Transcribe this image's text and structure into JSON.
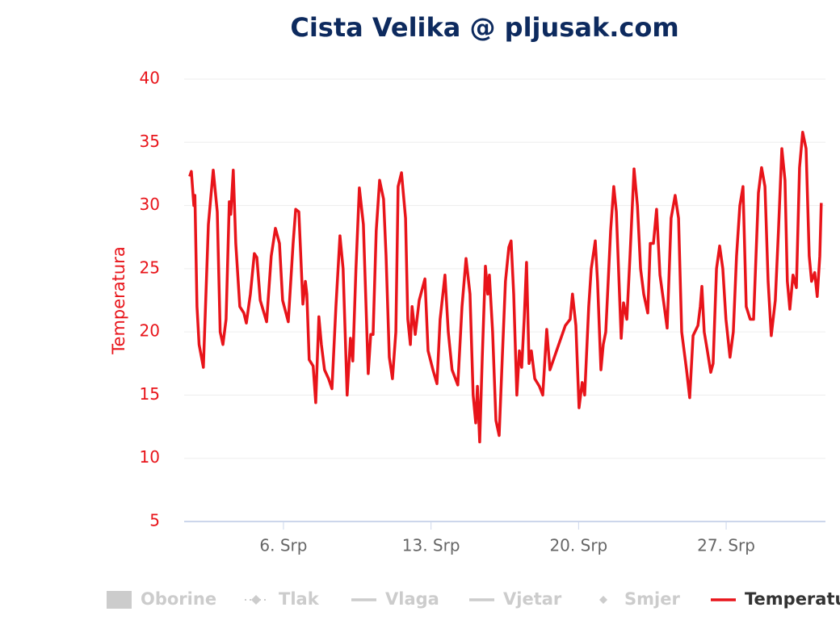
{
  "chart_data": {
    "type": "line",
    "title": "Cista Velika @ pljusak.com",
    "y_label": "Temperatura",
    "x": [
      1.55,
      1.63,
      1.75,
      1.8,
      1.9,
      2.0,
      2.2,
      2.44,
      2.67,
      2.86,
      3.0,
      3.13,
      3.28,
      3.43,
      3.5,
      3.62,
      3.74,
      3.93,
      4.12,
      4.24,
      4.43,
      4.62,
      4.74,
      4.9,
      5.2,
      5.42,
      5.62,
      5.81,
      5.96,
      6.23,
      6.46,
      6.58,
      6.73,
      6.92,
      7.04,
      7.11,
      7.22,
      7.41,
      7.53,
      7.68,
      7.8,
      7.95,
      8.14,
      8.3,
      8.49,
      8.68,
      8.83,
      9.02,
      9.18,
      9.29,
      9.44,
      9.6,
      9.79,
      10.02,
      10.14,
      10.25,
      10.4,
      10.56,
      10.75,
      10.87,
      11.02,
      11.17,
      11.33,
      11.44,
      11.6,
      11.79,
      11.9,
      12.02,
      12.1,
      12.25,
      12.44,
      12.71,
      12.86,
      13.09,
      13.28,
      13.43,
      13.66,
      13.82,
      14.0,
      14.27,
      14.47,
      14.66,
      14.85,
      15.0,
      15.12,
      15.2,
      15.31,
      15.43,
      15.58,
      15.69,
      15.77,
      15.92,
      16.08,
      16.23,
      16.38,
      16.53,
      16.69,
      16.8,
      16.92,
      17.07,
      17.19,
      17.3,
      17.42,
      17.53,
      17.65,
      17.76,
      17.92,
      18.14,
      18.3,
      18.49,
      18.64,
      19.37,
      19.6,
      19.71,
      19.87,
      20.02,
      20.17,
      20.29,
      20.48,
      20.6,
      20.79,
      20.9,
      21.06,
      21.17,
      21.29,
      21.52,
      21.67,
      21.79,
      22.02,
      22.13,
      22.29,
      22.44,
      22.63,
      22.79,
      22.94,
      23.09,
      23.28,
      23.4,
      23.55,
      23.7,
      23.86,
      24.04,
      24.2,
      24.39,
      24.58,
      24.74,
      24.89,
      25.12,
      25.27,
      25.43,
      25.66,
      25.77,
      25.85,
      25.96,
      26.11,
      26.27,
      26.38,
      26.54,
      26.69,
      26.84,
      26.99,
      27.18,
      27.34,
      27.49,
      27.65,
      27.8,
      27.95,
      28.14,
      28.3,
      28.53,
      28.68,
      28.84,
      28.99,
      29.14,
      29.33,
      29.48,
      29.64,
      29.79,
      29.9,
      30.02,
      30.17,
      30.33,
      30.48,
      30.63,
      30.79,
      30.94,
      31.05,
      31.2,
      31.32,
      31.44,
      31.51
    ],
    "series": [
      {
        "name": "Temperatura",
        "color": "#e8141a",
        "values": [
          32.3,
          32.7,
          30,
          30.8,
          22,
          19,
          17.2,
          28.5,
          32.8,
          29.5,
          20,
          19,
          21,
          30.3,
          29.3,
          32.8,
          27,
          22,
          21.5,
          20.7,
          23,
          26.2,
          25.9,
          22.5,
          20.8,
          26,
          28.2,
          27,
          22.5,
          20.8,
          27,
          29.7,
          29.5,
          22.2,
          24,
          23,
          17.8,
          17.3,
          14.4,
          21.2,
          19,
          17,
          16.3,
          15.5,
          22,
          27.6,
          25,
          15,
          19.5,
          17.7,
          25,
          31.4,
          28.5,
          16.7,
          19.8,
          19.8,
          28,
          32,
          30.5,
          26,
          18,
          16.3,
          20,
          31.5,
          32.6,
          29,
          21,
          19,
          22,
          19.8,
          22.5,
          24.2,
          18.5,
          17,
          15.9,
          21,
          24.5,
          20,
          17,
          15.8,
          22,
          25.8,
          23,
          15,
          12.8,
          15.7,
          11.3,
          18,
          25.2,
          23,
          24.5,
          20,
          13,
          11.8,
          18,
          24,
          26.7,
          27.2,
          23,
          15,
          18.5,
          17.2,
          21,
          25.5,
          17.5,
          18.5,
          16.3,
          15.7,
          15,
          20.2,
          17,
          20.5,
          21,
          23,
          20.5,
          14,
          16,
          15,
          22,
          25,
          27.2,
          24,
          17,
          19,
          20,
          28,
          31.5,
          29.5,
          19.5,
          22.3,
          21,
          26,
          32.9,
          30,
          25,
          23,
          21.5,
          27,
          27,
          29.7,
          24.5,
          22.3,
          20.3,
          29,
          30.8,
          29,
          20,
          17,
          14.8,
          19.7,
          20.5,
          22,
          23.6,
          20,
          18.5,
          16.8,
          17.5,
          25,
          26.8,
          25,
          21,
          18,
          20,
          26,
          30,
          31.5,
          22,
          21,
          21,
          31,
          33,
          31.5,
          24,
          19.7,
          22.5,
          28,
          34.5,
          32,
          24,
          21.8,
          24.5,
          23.5,
          33,
          35.8,
          34.5,
          26,
          24,
          24.7,
          22.8,
          26,
          30.2
        ]
      }
    ],
    "xlim": [
      1.29,
      31.71
    ],
    "xticks": [
      {
        "value": 6,
        "label": "6. Srp"
      },
      {
        "value": 13,
        "label": "13. Srp"
      },
      {
        "value": 20,
        "label": "20. Srp"
      },
      {
        "value": 27,
        "label": "27. Srp"
      }
    ],
    "ylim": [
      5,
      40
    ],
    "yticks": [
      5,
      10,
      15,
      20,
      25,
      30,
      35,
      40
    ],
    "grid": true,
    "legend": [
      {
        "name": "Oborine",
        "visible": false
      },
      {
        "name": "Tlak",
        "visible": false
      },
      {
        "name": "Vlaga",
        "visible": false
      },
      {
        "name": "Vjetar",
        "visible": false
      },
      {
        "name": "Smjer",
        "visible": false
      },
      {
        "name": "Temperatura",
        "visible": true
      }
    ]
  }
}
